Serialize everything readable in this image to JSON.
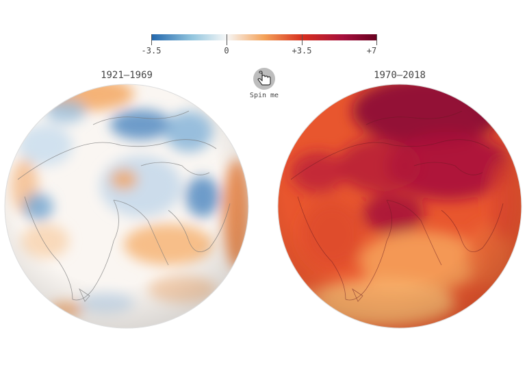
{
  "legend": {
    "labels": [
      {
        "value": -3.5,
        "text": "-3.5"
      },
      {
        "value": 0,
        "text": "0"
      },
      {
        "value": 3.5,
        "text": "+3.5"
      },
      {
        "value": 7,
        "text": "+7"
      }
    ],
    "domain": [
      -3.5,
      7
    ],
    "colors": {
      "cold": "#2166ac",
      "neutral": "#f7f7f7",
      "warm": "#f4a259",
      "hot": "#d7301f",
      "hottest": "#67001f"
    }
  },
  "periods": [
    {
      "label": "1921–1969"
    },
    {
      "label": "1970–2018"
    }
  ],
  "spin_button": {
    "label": "Spin me",
    "icon": "hand-pointer-icon"
  }
}
